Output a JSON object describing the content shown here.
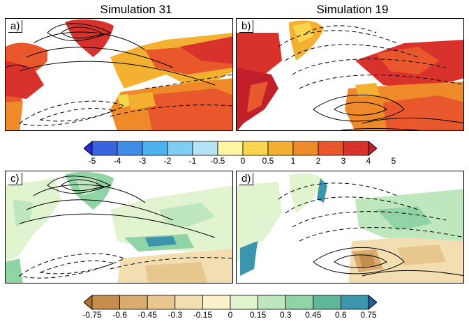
{
  "titles": {
    "left": "Simulation 31",
    "right": "Simulation 19"
  },
  "panels": {
    "a": "a)",
    "b": "b)",
    "c": "c)",
    "d": "d)"
  },
  "colorbar_top": {
    "labels": [
      "-5",
      "-4",
      "-3",
      "-2",
      "-1",
      "-0.5",
      "0",
      "0.5",
      "1",
      "2",
      "3",
      "4",
      "5"
    ],
    "colors": [
      "#2b2bd6",
      "#3a63e0",
      "#3f8de8",
      "#4cb2ee",
      "#7fcdf0",
      "#b5e3f4",
      "#fff4a3",
      "#f8d64e",
      "#f3b031",
      "#ef8a2a",
      "#e9582c",
      "#d9322c",
      "#c11f2a"
    ]
  },
  "colorbar_bottom": {
    "labels": [
      "-0.75",
      "-0.6",
      "-0.45",
      "-0.3",
      "-0.15",
      "0",
      "0.15",
      "0.3",
      "0.45",
      "0.6",
      "0.75"
    ],
    "colors": [
      "#b0722f",
      "#c58e4c",
      "#d9ab6e",
      "#e8c78f",
      "#f3deb2",
      "#fbf1c8",
      "#e2f4cf",
      "#bfe7bd",
      "#90d3a4",
      "#5fb89b",
      "#3b95ad",
      "#1f5f9c"
    ]
  }
}
